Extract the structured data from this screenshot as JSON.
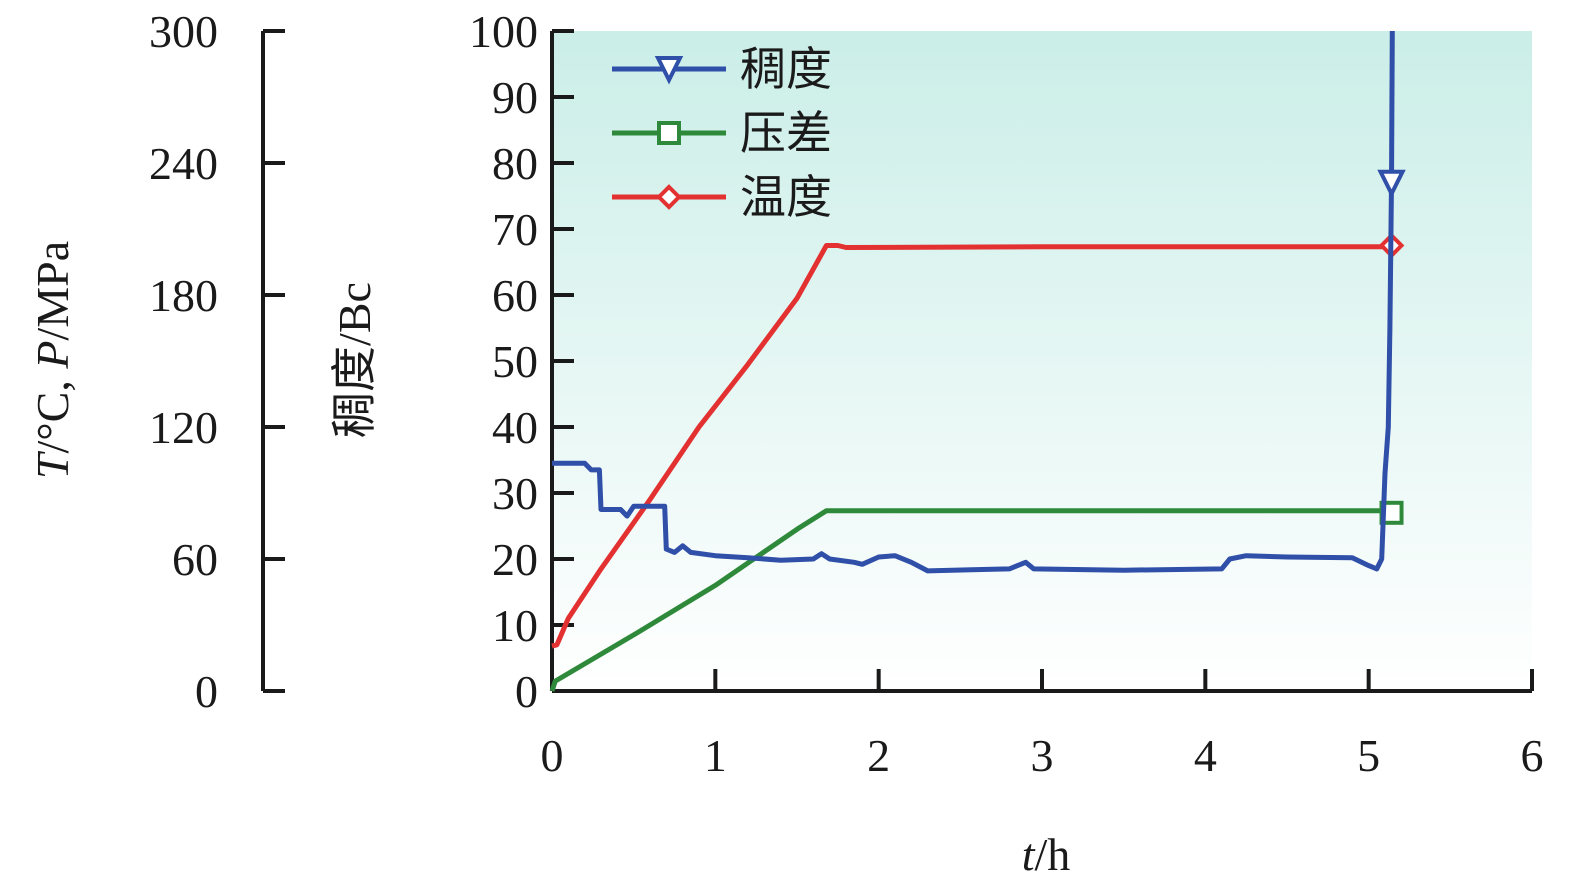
{
  "chart_data": {
    "type": "line",
    "x_axis": {
      "label_var": "t",
      "label_unit": "/h",
      "range": [
        0,
        6
      ],
      "ticks": [
        "0",
        "1",
        "2",
        "3",
        "4",
        "5",
        "6"
      ]
    },
    "y_left_axis": {
      "label_var_t": "T",
      "label_unit_t": "/°C, ",
      "label_var_p": "P",
      "label_unit_p": "/MPa",
      "range": [
        0,
        300
      ],
      "ticks": [
        "0",
        "60",
        "120",
        "180",
        "240",
        "300"
      ]
    },
    "y_main_axis": {
      "label": "稠度/Bc",
      "range": [
        0,
        100
      ],
      "ticks": [
        "0",
        "10",
        "20",
        "30",
        "40",
        "50",
        "60",
        "70",
        "80",
        "90",
        "100"
      ]
    },
    "legend_position": "top-left",
    "background_gradient": [
      "#cbeee8",
      "#ffffff"
    ],
    "series": [
      {
        "name": "稠度",
        "color": "#2f4fa8",
        "marker": "triangle-down",
        "marker_point": [
          5.14,
          77
        ],
        "points": [
          [
            0,
            34.5
          ],
          [
            0.2,
            34.5
          ],
          [
            0.24,
            33.5
          ],
          [
            0.29,
            33.5
          ],
          [
            0.3,
            27.5
          ],
          [
            0.42,
            27.5
          ],
          [
            0.46,
            26.5
          ],
          [
            0.5,
            28
          ],
          [
            0.69,
            28
          ],
          [
            0.7,
            21.5
          ],
          [
            0.75,
            21
          ],
          [
            0.8,
            22
          ],
          [
            0.85,
            21
          ],
          [
            1.0,
            20.5
          ],
          [
            1.2,
            20.2
          ],
          [
            1.4,
            19.8
          ],
          [
            1.6,
            20
          ],
          [
            1.65,
            20.8
          ],
          [
            1.7,
            20
          ],
          [
            1.85,
            19.5
          ],
          [
            1.9,
            19.2
          ],
          [
            2.0,
            20.3
          ],
          [
            2.1,
            20.5
          ],
          [
            2.2,
            19.5
          ],
          [
            2.3,
            18.2
          ],
          [
            2.6,
            18.4
          ],
          [
            2.8,
            18.5
          ],
          [
            2.9,
            19.5
          ],
          [
            2.95,
            18.5
          ],
          [
            3.5,
            18.3
          ],
          [
            4.1,
            18.5
          ],
          [
            4.15,
            20
          ],
          [
            4.25,
            20.5
          ],
          [
            4.5,
            20.3
          ],
          [
            4.9,
            20.2
          ],
          [
            5.0,
            19
          ],
          [
            5.05,
            18.5
          ],
          [
            5.08,
            20
          ],
          [
            5.1,
            33
          ],
          [
            5.12,
            40
          ],
          [
            5.13,
            55
          ],
          [
            5.14,
            77
          ],
          [
            5.145,
            100
          ]
        ]
      },
      {
        "name": "压差",
        "color": "#2e8a3a",
        "marker": "square",
        "marker_point": [
          5.14,
          27
        ],
        "points": [
          [
            0,
            0
          ],
          [
            0.02,
            1.5
          ],
          [
            0.5,
            8.5
          ],
          [
            1.0,
            16
          ],
          [
            1.5,
            24.5
          ],
          [
            1.68,
            27.3
          ],
          [
            1.75,
            27.3
          ],
          [
            5.08,
            27.3
          ]
        ]
      },
      {
        "name": "温度",
        "color": "#e33131",
        "marker": "diamond",
        "marker_point": [
          5.14,
          67.5
        ],
        "points": [
          [
            0,
            6.8
          ],
          [
            0.03,
            7
          ],
          [
            0.1,
            11
          ],
          [
            0.3,
            18.5
          ],
          [
            0.6,
            29
          ],
          [
            0.9,
            40
          ],
          [
            1.2,
            49.5
          ],
          [
            1.5,
            59.5
          ],
          [
            1.68,
            67.5
          ],
          [
            1.75,
            67.5
          ],
          [
            1.8,
            67.2
          ],
          [
            3.0,
            67.3
          ],
          [
            4.0,
            67.3
          ],
          [
            5.1,
            67.3
          ]
        ]
      }
    ]
  }
}
